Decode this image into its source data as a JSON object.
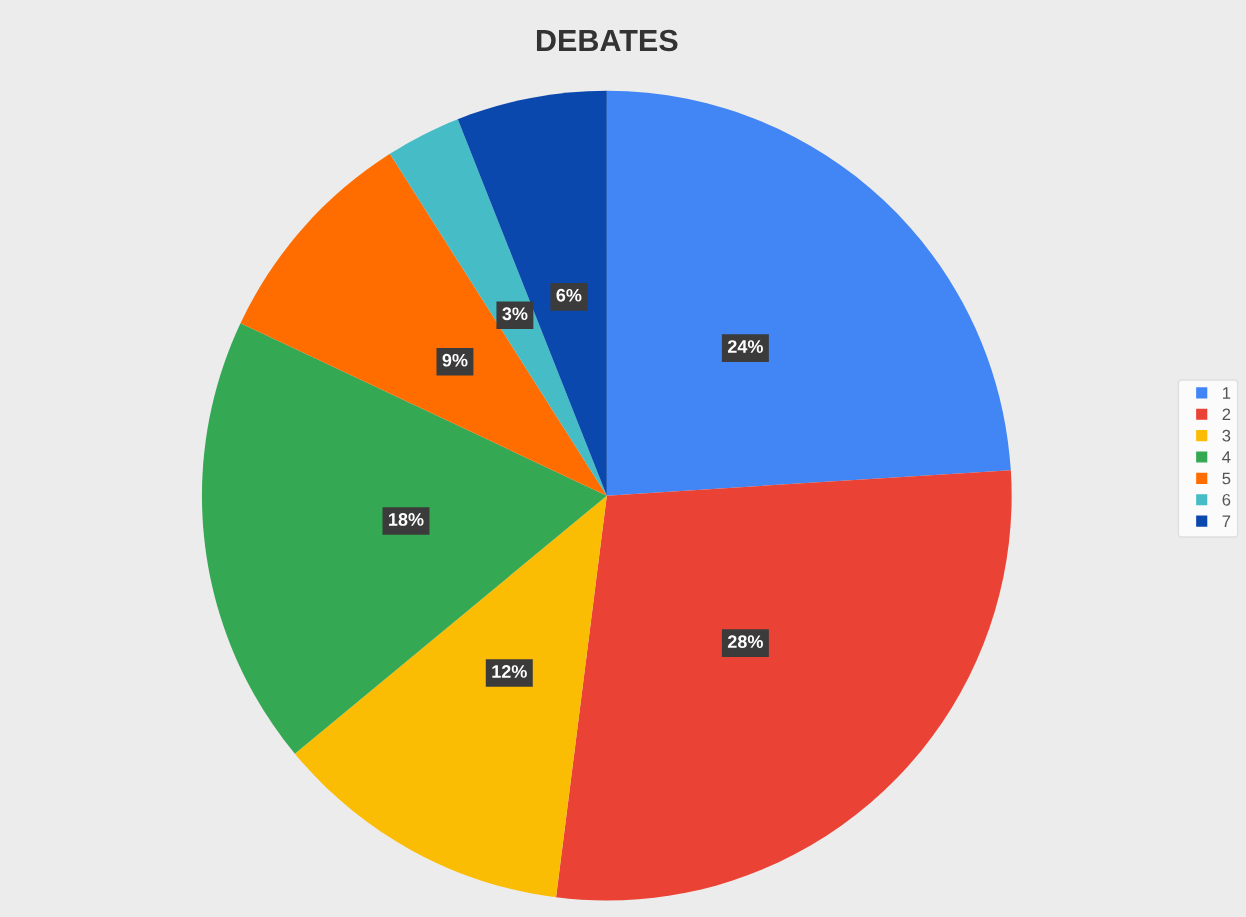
{
  "chart_data": {
    "type": "pie",
    "title": "DEBATES",
    "categories": [
      "1",
      "2",
      "3",
      "4",
      "5",
      "6",
      "7"
    ],
    "values": [
      24,
      28,
      12,
      18,
      9,
      3,
      6
    ],
    "colors": [
      "#4285f4",
      "#ea4335",
      "#fbbc04",
      "#34a853",
      "#ff6d01",
      "#46bdc6",
      "#0b48ad"
    ],
    "value_labels": [
      "24%",
      "28%",
      "12%",
      "18%",
      "9%",
      "3%",
      "6%"
    ],
    "legend": "right"
  }
}
